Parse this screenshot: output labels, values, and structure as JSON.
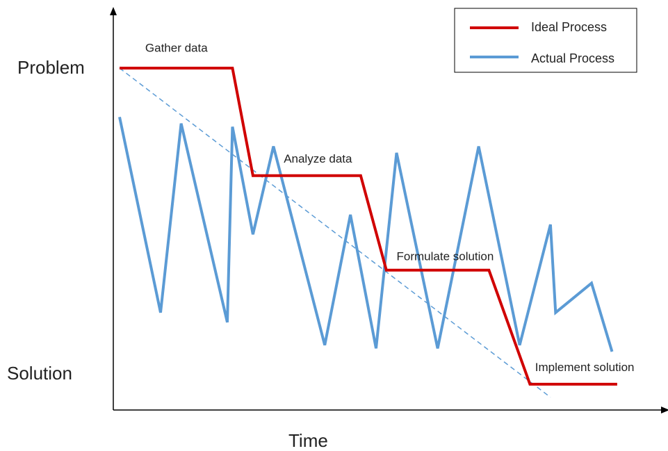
{
  "chart_data": {
    "type": "line",
    "title": "",
    "xlabel": "Time",
    "y_top_label": "Problem",
    "y_bottom_label": "Solution",
    "xlim": [
      0,
      100
    ],
    "ylim": [
      0,
      100
    ],
    "grid": false,
    "legend_position": "top-right",
    "series": [
      {
        "name": "Ideal Process",
        "color": "#d00000",
        "style": "solid",
        "points": [
          [
            0,
            100
          ],
          [
            22,
            100
          ],
          [
            26,
            67
          ],
          [
            47,
            67
          ],
          [
            52,
            38
          ],
          [
            72,
            38
          ],
          [
            80,
            3
          ],
          [
            97,
            3
          ]
        ]
      },
      {
        "name": "Actual Process",
        "color": "#5b9bd5",
        "style": "solid",
        "points": [
          [
            0,
            85
          ],
          [
            8,
            25
          ],
          [
            12,
            83
          ],
          [
            21,
            22
          ],
          [
            22,
            82
          ],
          [
            26,
            49
          ],
          [
            30,
            76
          ],
          [
            40,
            15
          ],
          [
            45,
            55
          ],
          [
            50,
            14
          ],
          [
            54,
            74
          ],
          [
            62,
            14
          ],
          [
            70,
            76
          ],
          [
            78,
            15
          ],
          [
            84,
            52
          ],
          [
            85,
            25
          ],
          [
            92,
            34
          ],
          [
            96,
            13
          ]
        ]
      },
      {
        "name": "",
        "color": "#5b9bd5",
        "style": "dashed",
        "points": [
          [
            0,
            100
          ],
          [
            84,
            -1
          ]
        ]
      }
    ],
    "annotations": [
      {
        "id": "gather",
        "text": "Gather data",
        "x": 5,
        "y": 105
      },
      {
        "id": "analyze",
        "text": "Analyze data",
        "x": 32,
        "y": 71
      },
      {
        "id": "formulate",
        "text": "Formulate solution",
        "x": 54,
        "y": 41
      },
      {
        "id": "implement",
        "text": "Implement solution",
        "x": 81,
        "y": 7
      }
    ]
  }
}
